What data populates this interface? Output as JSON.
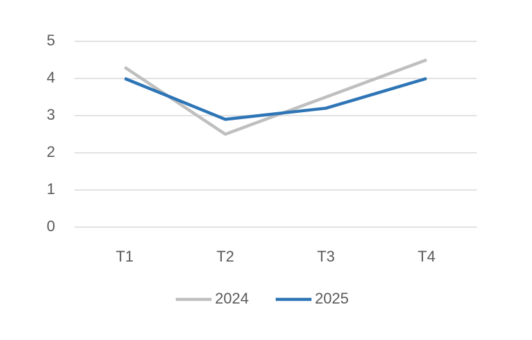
{
  "chart_data": {
    "type": "line",
    "categories": [
      "T1",
      "T2",
      "T3",
      "T4"
    ],
    "series": [
      {
        "name": "2024",
        "color": "#bfbfbf",
        "values": [
          4.3,
          2.5,
          3.5,
          4.5
        ]
      },
      {
        "name": "2025",
        "color": "#2e75b6",
        "values": [
          4,
          2.9,
          3.2,
          4
        ]
      }
    ],
    "ylim": [
      0,
      5
    ],
    "yticks": [
      0,
      1,
      2,
      3,
      4,
      5
    ],
    "grid": true,
    "legend": "bottom"
  }
}
